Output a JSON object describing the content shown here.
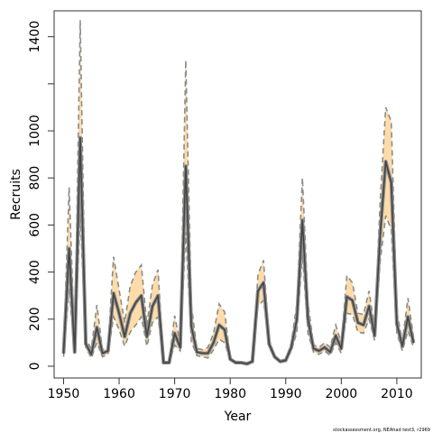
{
  "chart_data": {
    "type": "line",
    "xlabel": "Year",
    "ylabel": "Recruits",
    "credit": "stockassessment.org, NEAhad test3, r2969",
    "xlim": [
      1948.3,
      2014.4
    ],
    "ylim": [
      -50,
      1510
    ],
    "x_ticks": [
      1950,
      1960,
      1970,
      1980,
      1990,
      2000,
      2010
    ],
    "y_ticks": [
      0,
      200,
      400,
      600,
      800,
      1000,
      1200,
      1400
    ],
    "y_tick_labels": [
      "0",
      "200",
      "400",
      "600",
      "800",
      "1000",
      "",
      "1400"
    ],
    "grid": false,
    "colors": {
      "band": "#fddcaa",
      "bound_line": "#8c8c8c",
      "estimate_line": "#444444",
      "estimate_halo": "#8c8c8c"
    },
    "series": [
      {
        "name": "",
        "x": [
          1950,
          1951,
          1952,
          1953,
          1954,
          1955,
          1956,
          1957,
          1958,
          1959,
          1960,
          1961,
          1962,
          1963,
          1964,
          1965,
          1966,
          1967,
          1968,
          1969,
          1970,
          1971,
          1972,
          1973,
          1974,
          1975,
          1976,
          1977,
          1978,
          1979,
          1980,
          1981,
          1982,
          1983,
          1984,
          1985,
          1986,
          1987,
          1988,
          1989,
          1990,
          1991,
          1992,
          1993,
          1994,
          1995,
          1996,
          1997,
          1998,
          1999,
          2000,
          2001,
          2002,
          2003,
          2004,
          2005,
          2006,
          2007,
          2008,
          2009,
          2010,
          2011,
          2012,
          2013
        ],
        "y": [
          55,
          500,
          60,
          970,
          95,
          50,
          165,
          55,
          65,
          310,
          225,
          125,
          225,
          270,
          300,
          125,
          255,
          300,
          15,
          15,
          140,
          80,
          850,
          170,
          60,
          55,
          55,
          100,
          175,
          155,
          30,
          15,
          15,
          10,
          20,
          320,
          355,
          95,
          40,
          20,
          25,
          80,
          200,
          620,
          200,
          75,
          65,
          80,
          60,
          130,
          75,
          295,
          280,
          185,
          175,
          255,
          130,
          560,
          870,
          780,
          180,
          85,
          210,
          100
        ],
        "upper": [
          70,
          760,
          80,
          1470,
          115,
          75,
          260,
          70,
          80,
          465,
          325,
          185,
          340,
          400,
          430,
          175,
          345,
          410,
          20,
          20,
          215,
          95,
          1300,
          260,
          75,
          70,
          80,
          140,
          265,
          230,
          35,
          20,
          20,
          15,
          25,
          390,
          450,
          115,
          45,
          25,
          30,
          100,
          265,
          800,
          270,
          90,
          80,
          100,
          80,
          175,
          100,
          385,
          355,
          225,
          220,
          320,
          160,
          700,
          1100,
          1040,
          230,
          105,
          290,
          125
        ],
        "lower": [
          40,
          330,
          50,
          650,
          80,
          35,
          100,
          40,
          50,
          210,
          155,
          85,
          145,
          175,
          210,
          85,
          185,
          210,
          12,
          12,
          90,
          65,
          570,
          105,
          45,
          40,
          35,
          70,
          115,
          100,
          25,
          12,
          12,
          8,
          15,
          255,
          280,
          80,
          35,
          15,
          20,
          65,
          145,
          475,
          140,
          60,
          50,
          65,
          45,
          100,
          55,
          225,
          220,
          145,
          140,
          200,
          110,
          445,
          640,
          580,
          140,
          65,
          150,
          80
        ]
      }
    ]
  }
}
